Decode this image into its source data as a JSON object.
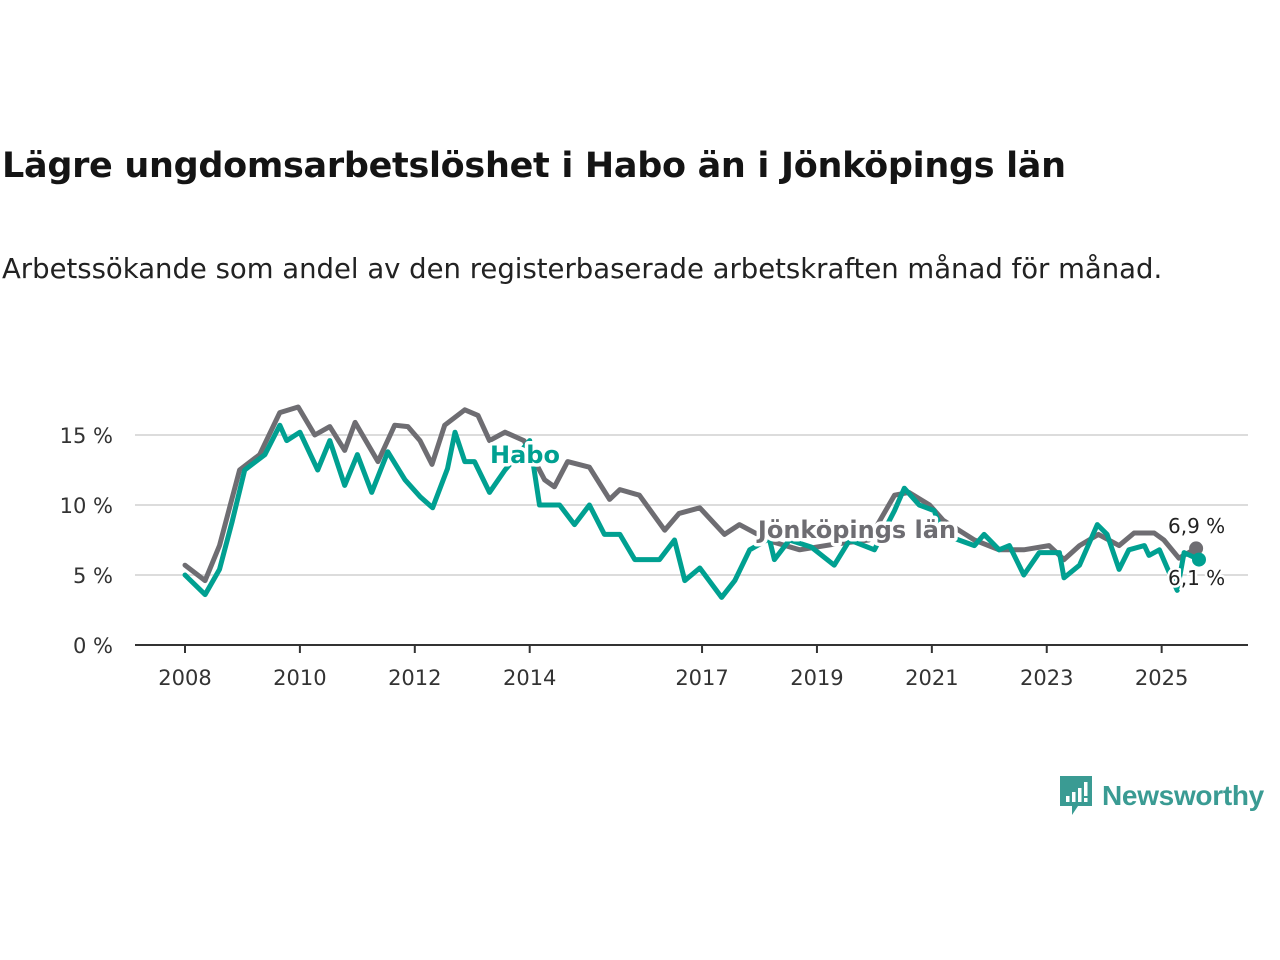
{
  "chart_data": {
    "type": "line",
    "title": "Lägre ungdomsarbetslöshet i Habo än i Jönköpings län",
    "subtitle": "Arbetssökande som andel av den registerbaserade arbetskraften månad för månad.",
    "xlabel": "",
    "ylabel": "",
    "xlim": [
      2007.1,
      2026.5
    ],
    "ylim": [
      0,
      17.5
    ],
    "x_ticks": [
      2008,
      2010,
      2012,
      2014,
      2017,
      2019,
      2021,
      2023,
      2025
    ],
    "x_tick_labels": [
      "2008",
      "2010",
      "2012",
      "2014",
      "2017",
      "2019",
      "2021",
      "2023",
      "2025"
    ],
    "y_ticks": [
      0,
      5,
      10,
      15
    ],
    "y_tick_labels": [
      "0 %",
      "5 %",
      "10 %",
      "15 %"
    ],
    "grid": true,
    "legend": "inline labels",
    "series": [
      {
        "name": "Jönköpings län",
        "color": "#6e6d72",
        "end_label": "6,9 %",
        "x": [
          2008.0,
          2008.35,
          2008.6,
          2008.95,
          2009.3,
          2009.65,
          2009.97,
          2010.26,
          2010.52,
          2010.78,
          2010.96,
          2011.36,
          2011.65,
          2011.88,
          2012.09,
          2012.3,
          2012.52,
          2012.87,
          2013.1,
          2013.3,
          2013.57,
          2013.9,
          2014.26,
          2014.43,
          2014.66,
          2015.04,
          2015.39,
          2015.57,
          2015.91,
          2016.35,
          2016.6,
          2016.96,
          2017.39,
          2017.65,
          2018.2,
          2018.7,
          2019.3,
          2019.9,
          2020.35,
          2020.6,
          2020.96,
          2021.2,
          2021.74,
          2022.17,
          2022.6,
          2023.04,
          2023.3,
          2023.57,
          2023.9,
          2024.26,
          2024.52,
          2024.87,
          2025.04,
          2025.3,
          2025.6
        ],
        "values": [
          5.7,
          4.6,
          7.1,
          12.5,
          13.6,
          16.6,
          17.0,
          15.0,
          15.6,
          13.9,
          15.9,
          13.1,
          15.7,
          15.6,
          14.6,
          12.9,
          15.7,
          16.8,
          16.4,
          14.6,
          15.2,
          14.6,
          11.8,
          11.3,
          13.1,
          12.7,
          10.4,
          11.1,
          10.7,
          8.2,
          9.4,
          9.8,
          7.9,
          8.6,
          7.4,
          6.8,
          7.2,
          7.5,
          10.7,
          10.9,
          10.0,
          8.9,
          7.5,
          6.8,
          6.8,
          7.1,
          6.1,
          7.1,
          7.9,
          7.1,
          8.0,
          8.0,
          7.5,
          6.2,
          6.9
        ]
      },
      {
        "name": "Habo",
        "color": "#00a091",
        "end_label": "6,1 %",
        "x": [
          2008.0,
          2008.35,
          2008.6,
          2008.82,
          2009.04,
          2009.39,
          2009.65,
          2009.77,
          2010.0,
          2010.31,
          2010.52,
          2010.78,
          2011.0,
          2011.25,
          2011.53,
          2011.83,
          2012.09,
          2012.31,
          2012.57,
          2012.7,
          2012.87,
          2013.04,
          2013.3,
          2013.57,
          2014.0,
          2014.17,
          2014.52,
          2014.78,
          2015.04,
          2015.3,
          2015.57,
          2015.83,
          2016.26,
          2016.52,
          2016.7,
          2016.96,
          2017.34,
          2017.57,
          2017.83,
          2018.17,
          2018.26,
          2018.52,
          2018.9,
          2019.3,
          2019.57,
          2020.0,
          2020.35,
          2020.52,
          2020.78,
          2021.04,
          2021.2,
          2021.74,
          2021.91,
          2022.17,
          2022.35,
          2022.6,
          2022.87,
          2023.22,
          2023.3,
          2023.57,
          2023.88,
          2024.05,
          2024.26,
          2024.43,
          2024.7,
          2024.78,
          2024.96,
          2025.13,
          2025.27,
          2025.39,
          2025.65
        ],
        "values": [
          5.0,
          3.6,
          5.4,
          8.8,
          12.5,
          13.6,
          15.7,
          14.6,
          15.2,
          12.5,
          14.6,
          11.4,
          13.6,
          10.9,
          13.8,
          11.8,
          10.6,
          9.8,
          12.6,
          15.2,
          13.1,
          13.1,
          10.9,
          12.5,
          14.6,
          10.0,
          10.0,
          8.6,
          10.0,
          7.9,
          7.9,
          6.1,
          6.1,
          7.5,
          4.6,
          5.5,
          3.4,
          4.6,
          6.8,
          7.6,
          6.1,
          7.5,
          7.0,
          5.7,
          7.5,
          6.8,
          9.6,
          11.2,
          10.0,
          9.6,
          7.9,
          7.1,
          7.9,
          6.8,
          7.1,
          5.0,
          6.6,
          6.6,
          4.8,
          5.7,
          8.6,
          7.9,
          5.4,
          6.8,
          7.1,
          6.4,
          6.8,
          5.2,
          3.9,
          6.6,
          6.1
        ]
      }
    ]
  },
  "branding": {
    "logo_text": "Newsworthy",
    "logo_color": "#3a9b93"
  }
}
